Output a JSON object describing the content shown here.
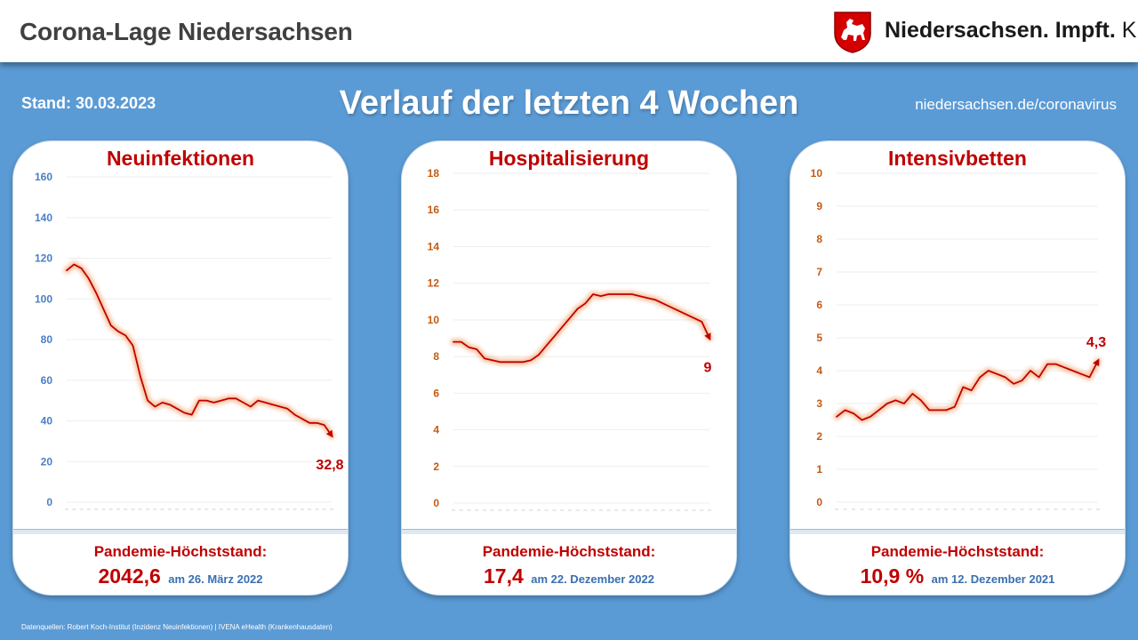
{
  "header": {
    "app_title": "Corona-Lage Niedersachsen",
    "brand_part1": "Niedersachsen.",
    "brand_part2": "Impft.",
    "brand_part3": "Klar."
  },
  "banner": {
    "stand": "Stand: 30.03.2023",
    "headline": "Verlauf der letzten 4 Wochen",
    "site": "niedersachsen.de/coronavirus"
  },
  "colors": {
    "background": "#5b9bd5",
    "accent_red": "#c00000",
    "axis_blue": "#4a7ec4",
    "axis_orange": "#c55a11",
    "line_glow": "#f4b183"
  },
  "footer": {
    "sources": "Datenquellen:  Robert Koch-Institut (Inzidenz Neuinfektionen) | IVENA eHealth (Krankenhausdaten)"
  },
  "chart_data": [
    {
      "type": "line",
      "title": "Neuinfektionen",
      "ylim": [
        0,
        160
      ],
      "yticks": [
        0,
        20,
        40,
        60,
        80,
        100,
        120,
        140,
        160
      ],
      "tick_color": "#4a7ec4",
      "values": [
        114,
        117,
        115,
        110,
        103,
        95,
        87,
        84,
        82,
        77,
        62,
        50,
        47,
        49,
        48,
        46,
        44,
        43,
        50,
        50,
        49,
        50,
        51,
        51,
        49,
        47,
        50,
        49,
        48,
        47,
        46,
        43,
        41,
        39,
        39,
        38,
        32.8
      ],
      "last_label": "32,8",
      "peak_label": "Pandemie-Höchststand:",
      "peak_value": "2042,6",
      "peak_date": "am 26. März 2022"
    },
    {
      "type": "line",
      "title": "Hospitalisierung",
      "ylim": [
        0,
        18
      ],
      "yticks": [
        0,
        2,
        4,
        6,
        8,
        10,
        12,
        14,
        16,
        18
      ],
      "tick_color": "#c55a11",
      "values": [
        8.8,
        8.8,
        8.5,
        8.4,
        7.9,
        7.8,
        7.7,
        7.7,
        7.7,
        7.7,
        7.8,
        8.1,
        8.6,
        9.1,
        9.6,
        10.1,
        10.6,
        10.9,
        11.4,
        11.3,
        11.4,
        11.4,
        11.4,
        11.4,
        11.3,
        11.2,
        11.1,
        10.9,
        10.7,
        10.5,
        10.3,
        10.1,
        9.9,
        9.0
      ],
      "last_label": "9",
      "peak_label": "Pandemie-Höchststand:",
      "peak_value": "17,4",
      "peak_date": "am 22. Dezember 2022"
    },
    {
      "type": "line",
      "title": "Intensivbetten",
      "ylim": [
        0,
        10
      ],
      "yticks": [
        0,
        1,
        2,
        3,
        4,
        5,
        6,
        7,
        8,
        9,
        10
      ],
      "tick_color": "#c55a11",
      "values": [
        2.6,
        2.8,
        2.7,
        2.5,
        2.6,
        2.8,
        3.0,
        3.1,
        3.0,
        3.3,
        3.1,
        2.8,
        2.8,
        2.8,
        2.9,
        3.5,
        3.4,
        3.8,
        4.0,
        3.9,
        3.8,
        3.6,
        3.7,
        4.0,
        3.8,
        4.2,
        4.2,
        4.1,
        4.0,
        3.9,
        3.8,
        4.3
      ],
      "last_label": "4,3",
      "peak_label": "Pandemie-Höchststand:",
      "peak_value": "10,9 %",
      "peak_date": "am 12. Dezember 2021"
    }
  ]
}
